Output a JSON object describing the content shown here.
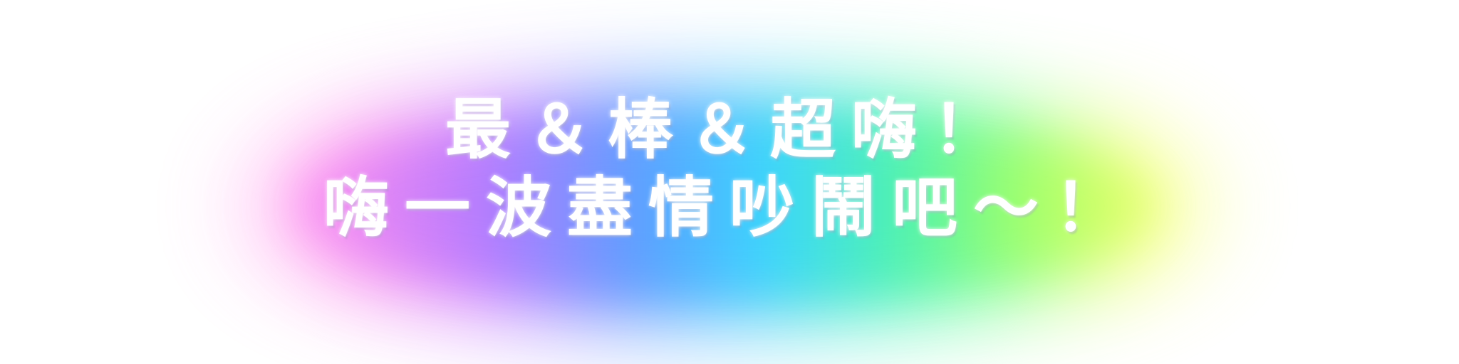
{
  "banner": {
    "line1": "最＆棒＆超嗨！",
    "line2": "嗨一波盡情吵鬧吧～！"
  },
  "colors": {
    "text": "#ffffff",
    "glow_gradient": [
      "#ff7ae8",
      "#c06bff",
      "#5a8bff",
      "#3cc8ff",
      "#38f0c0",
      "#6dff8a",
      "#f4ff5c"
    ],
    "background": "#ffffff"
  }
}
